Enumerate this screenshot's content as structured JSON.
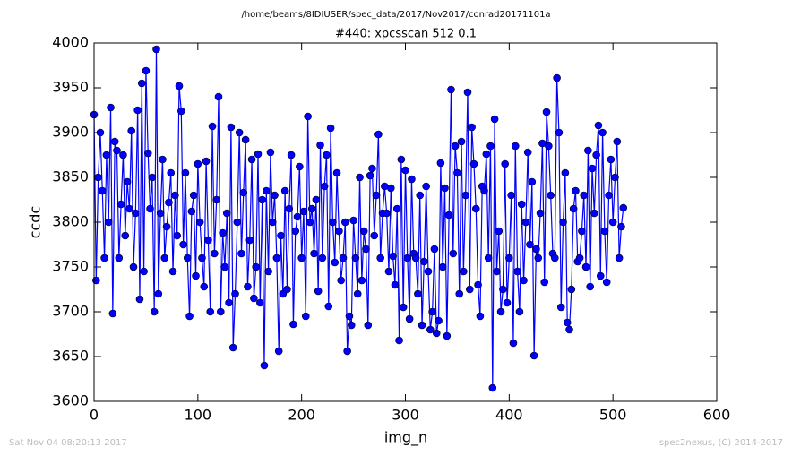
{
  "chart_data": {
    "type": "line",
    "title": "/home/beams/8IDIUSER/spec_data/2017/Nov2017/conrad20171101a",
    "subtitle": "#440: xpcsscan 512 0.1",
    "xlabel": "img_n",
    "ylabel": "ccdc",
    "footer_left": "Sat Nov 04 08:20:13 2017",
    "footer_right": "spec2nexus, (C) 2014-2017",
    "xlim": [
      0,
      600
    ],
    "xticks": [
      0,
      100,
      200,
      300,
      400,
      500,
      600
    ],
    "ylim": [
      3600,
      4000
    ],
    "yticks": [
      3600,
      3650,
      3700,
      3750,
      3800,
      3850,
      3900,
      3950,
      4000
    ],
    "x": [
      0,
      2,
      4,
      6,
      8,
      10,
      12,
      14,
      16,
      18,
      20,
      22,
      24,
      26,
      28,
      30,
      32,
      34,
      36,
      38,
      40,
      42,
      44,
      46,
      48,
      50,
      52,
      54,
      56,
      58,
      60,
      62,
      64,
      66,
      68,
      70,
      72,
      74,
      76,
      78,
      80,
      82,
      84,
      86,
      88,
      90,
      92,
      94,
      96,
      98,
      100,
      102,
      104,
      106,
      108,
      110,
      112,
      114,
      116,
      118,
      120,
      122,
      124,
      126,
      128,
      130,
      132,
      134,
      136,
      138,
      140,
      142,
      144,
      146,
      148,
      150,
      152,
      154,
      156,
      158,
      160,
      162,
      164,
      166,
      168,
      170,
      172,
      174,
      176,
      178,
      180,
      182,
      184,
      186,
      188,
      190,
      192,
      194,
      196,
      198,
      200,
      202,
      204,
      206,
      208,
      210,
      212,
      214,
      216,
      218,
      220,
      222,
      224,
      226,
      228,
      230,
      232,
      234,
      236,
      238,
      240,
      242,
      244,
      246,
      248,
      250,
      252,
      254,
      256,
      258,
      260,
      262,
      264,
      266,
      268,
      270,
      272,
      274,
      276,
      278,
      280,
      282,
      284,
      286,
      288,
      290,
      292,
      294,
      296,
      298,
      300,
      302,
      304,
      306,
      308,
      310,
      312,
      314,
      316,
      318,
      320,
      322,
      324,
      326,
      328,
      330,
      332,
      334,
      336,
      338,
      340,
      342,
      344,
      346,
      348,
      350,
      352,
      354,
      356,
      358,
      360,
      362,
      364,
      366,
      368,
      370,
      372,
      374,
      376,
      378,
      380,
      382,
      384,
      386,
      388,
      390,
      392,
      394,
      396,
      398,
      400,
      402,
      404,
      406,
      408,
      410,
      412,
      414,
      416,
      418,
      420,
      422,
      424,
      426,
      428,
      430,
      432,
      434,
      436,
      438,
      440,
      442,
      444,
      446,
      448,
      450,
      452,
      454,
      456,
      458,
      460,
      462,
      464,
      466,
      468,
      470,
      472,
      474,
      476,
      478,
      480,
      482,
      484,
      486,
      488,
      490,
      492,
      494,
      496,
      498,
      500,
      502,
      504,
      506,
      508,
      510
    ],
    "series": [
      {
        "color": "#0000ff",
        "values": [
          3920,
          3735,
          3850,
          3900,
          3835,
          3760,
          3875,
          3800,
          3928,
          3698,
          3890,
          3880,
          3760,
          3820,
          3875,
          3785,
          3845,
          3815,
          3902,
          3750,
          3810,
          3925,
          3714,
          3955,
          3745,
          3969,
          3877,
          3815,
          3850,
          3700,
          3993,
          3720,
          3810,
          3870,
          3760,
          3795,
          3822,
          3855,
          3745,
          3830,
          3785,
          3952,
          3924,
          3775,
          3855,
          3760,
          3695,
          3812,
          3830,
          3740,
          3865,
          3800,
          3760,
          3728,
          3868,
          3780,
          3700,
          3907,
          3765,
          3825,
          3940,
          3700,
          3788,
          3750,
          3810,
          3710,
          3906,
          3660,
          3720,
          3800,
          3900,
          3765,
          3833,
          3892,
          3728,
          3780,
          3870,
          3715,
          3750,
          3876,
          3710,
          3825,
          3640,
          3835,
          3745,
          3878,
          3800,
          3830,
          3760,
          3656,
          3785,
          3720,
          3835,
          3725,
          3815,
          3875,
          3686,
          3790,
          3806,
          3862,
          3760,
          3812,
          3695,
          3918,
          3800,
          3815,
          3765,
          3825,
          3723,
          3886,
          3760,
          3840,
          3875,
          3706,
          3905,
          3800,
          3755,
          3855,
          3790,
          3735,
          3760,
          3800,
          3656,
          3695,
          3685,
          3802,
          3760,
          3720,
          3850,
          3735,
          3790,
          3770,
          3685,
          3852,
          3860,
          3785,
          3830,
          3898,
          3760,
          3810,
          3840,
          3810,
          3745,
          3838,
          3762,
          3730,
          3815,
          3668,
          3870,
          3705,
          3858,
          3760,
          3692,
          3848,
          3765,
          3760,
          3720,
          3830,
          3685,
          3756,
          3840,
          3745,
          3680,
          3700,
          3770,
          3676,
          3690,
          3866,
          3750,
          3838,
          3673,
          3808,
          3948,
          3765,
          3885,
          3855,
          3720,
          3890,
          3745,
          3830,
          3945,
          3725,
          3906,
          3865,
          3815,
          3730,
          3695,
          3840,
          3835,
          3876,
          3760,
          3885,
          3615,
          3915,
          3745,
          3790,
          3700,
          3725,
          3865,
          3710,
          3760,
          3830,
          3665,
          3885,
          3745,
          3700,
          3820,
          3735,
          3800,
          3878,
          3775,
          3845,
          3651,
          3770,
          3760,
          3810,
          3888,
          3733,
          3923,
          3885,
          3830,
          3765,
          3760,
          3961,
          3900,
          3705,
          3800,
          3855,
          3688,
          3680,
          3725,
          3815,
          3835,
          3756,
          3760,
          3790,
          3830,
          3750,
          3880,
          3728,
          3860,
          3810,
          3875,
          3908,
          3740,
          3900,
          3790,
          3733,
          3830,
          3870,
          3800,
          3850,
          3890,
          3760,
          3795,
          3816
        ]
      }
    ]
  }
}
